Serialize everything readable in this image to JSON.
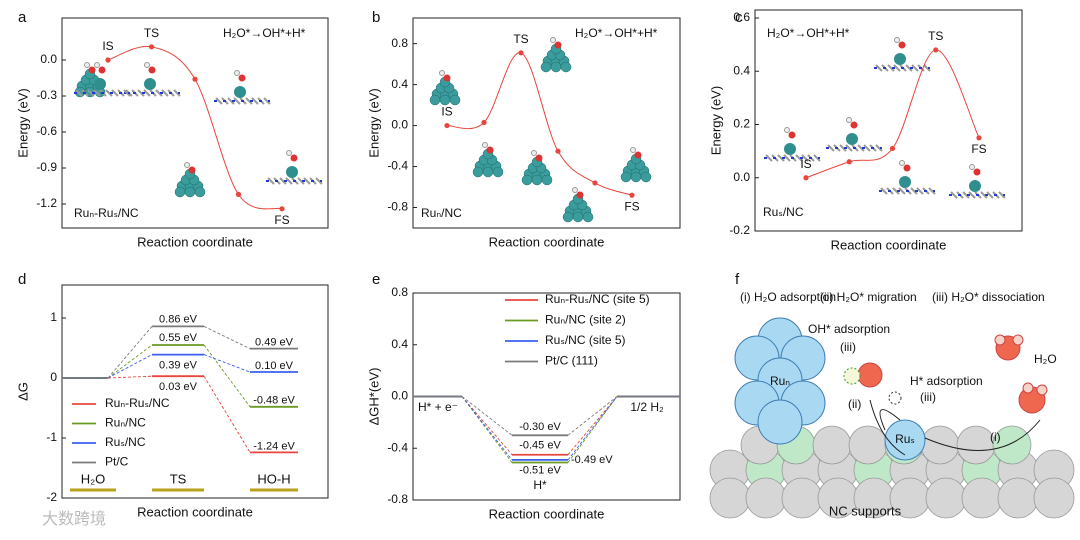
{
  "chart_data": [
    {
      "label": "a",
      "type": "line",
      "annotation": "H₂O*→OH*+H*",
      "text": "Ruₙ-Ruₛ/NC",
      "xlabel": "Reaction coordinate",
      "ylabel": "Energy (eV)",
      "categories": [
        "IS",
        "TS",
        null,
        null,
        "FS"
      ],
      "values": [
        0,
        0.11,
        -0.16,
        -1.12,
        -1.24
      ],
      "color": "#e8453c",
      "ylim": [
        -1.4,
        0.35
      ],
      "yticks": [
        {
          "value": 0,
          "label": "0.0"
        },
        -0.3,
        -0.6,
        -0.9,
        -1.2
      ]
    },
    {
      "label": "b",
      "type": "line",
      "annotation": "H₂O*→OH*+H*",
      "text": "Ruₙ/NC",
      "xlabel": "Reaction coordinate",
      "ylabel": "Energy (eV)",
      "categories": [
        "IS",
        null,
        "TS",
        null,
        null,
        "FS"
      ],
      "values": [
        0,
        0.03,
        0.71,
        -0.25,
        -0.56,
        -0.68
      ],
      "color": "#e8453c",
      "ylim": [
        -1.0,
        1.05
      ],
      "yticks": [
        0.8,
        0.4,
        {
          "value": 0,
          "label": "0.0"
        },
        -0.4,
        -0.8
      ]
    },
    {
      "label": "c",
      "type": "line",
      "annotation": "H₂O*→OH*+H*",
      "text": "Ruₛ/NC",
      "xlabel": "Reaction coordinate",
      "ylabel": "Energy (eV)",
      "categories": [
        "IS",
        null,
        null,
        "TS",
        "FS"
      ],
      "values": [
        0,
        0.06,
        0.11,
        0.48,
        0.15
      ],
      "color": "#e8453c",
      "ylim": [
        -0.2,
        0.63
      ],
      "yticks": [
        0.6,
        0.4,
        0.2,
        {
          "value": 0,
          "label": "0.0"
        },
        -0.2
      ]
    },
    {
      "label": "d",
      "type": "energy_levels",
      "xlabel": "Reaction coordinate",
      "ylabel": "ΔG",
      "categories": [
        "H₂O",
        "TS",
        "HO-H"
      ],
      "ylim": [
        -2,
        1.55
      ],
      "yticks": [
        1,
        0,
        -1,
        -2
      ],
      "series": [
        {
          "name": "Ruₙ-Ruₛ/NC",
          "color": "#e8453c",
          "values": [
            0,
            0.03,
            -1.24
          ],
          "value_labels": [
            null,
            "0.03 eV",
            "-1.24 eV"
          ]
        },
        {
          "name": "Ruₙ/NC",
          "color": "#6b9a22",
          "values": [
            0,
            0.55,
            -0.48
          ],
          "value_labels": [
            null,
            "0.55 eV",
            "-0.48 eV"
          ]
        },
        {
          "name": "Ruₛ/NC",
          "color": "#3b5ff0",
          "values": [
            0,
            0.39,
            0.1
          ],
          "value_labels": [
            null,
            "0.39 eV",
            "0.10 eV"
          ]
        },
        {
          "name": "Pt/C",
          "color": "#7a7a7a",
          "values": [
            0,
            0.86,
            0.49
          ],
          "value_labels": [
            null,
            "0.86 eV",
            "0.49 eV"
          ]
        }
      ]
    },
    {
      "label": "e",
      "type": "energy_levels",
      "xlabel": "Reaction coordinate",
      "ylabel": "ΔGH*(eV)",
      "categories": [
        "H* + e⁻",
        "H*",
        "1/2 H₂"
      ],
      "ylim": [
        -0.8,
        0.8
      ],
      "yticks": [
        0.8,
        0.4,
        {
          "value": 0,
          "label": "0.0"
        },
        -0.4,
        -0.8
      ],
      "series": [
        {
          "name": "Ruₙ-Ruₛ/NC (site 5)",
          "color": "#e8453c",
          "values": [
            0,
            -0.45,
            0
          ],
          "value_labels": [
            null,
            "-0.45 eV",
            null
          ]
        },
        {
          "name": "Ruₙ/NC (site 2)",
          "color": "#6b9a22",
          "values": [
            0,
            -0.51,
            0
          ],
          "value_labels": [
            null,
            "-0.51 eV",
            null
          ]
        },
        {
          "name": "Ruₛ/NC (site 5)",
          "color": "#3b5ff0",
          "values": [
            0,
            -0.49,
            0
          ],
          "value_labels": [
            null,
            "-0.49 eV",
            null
          ]
        },
        {
          "name": "Pt/C (111)",
          "color": "#7a7a7a",
          "values": [
            0,
            -0.3,
            0
          ],
          "value_labels": [
            null,
            "-0.30 eV",
            null
          ]
        }
      ]
    }
  ],
  "panel_f": {
    "label": "f",
    "steps": [
      "(i) H₂O adsorption",
      "(ii) H₂O* migration",
      "(iii) H₂O* dissociation"
    ],
    "oh_adsorption": "OH* adsorption",
    "h_adsorption": "H* adsorption",
    "step_iii_a": "(iii)",
    "step_iii_b": "(iii)",
    "step_ii": "(ii)",
    "step_i": "(i)",
    "run": "Ruₙ",
    "rus": "Ruₛ",
    "water": "H₂O",
    "support": "NC supports"
  },
  "watermark": "大数跨境"
}
